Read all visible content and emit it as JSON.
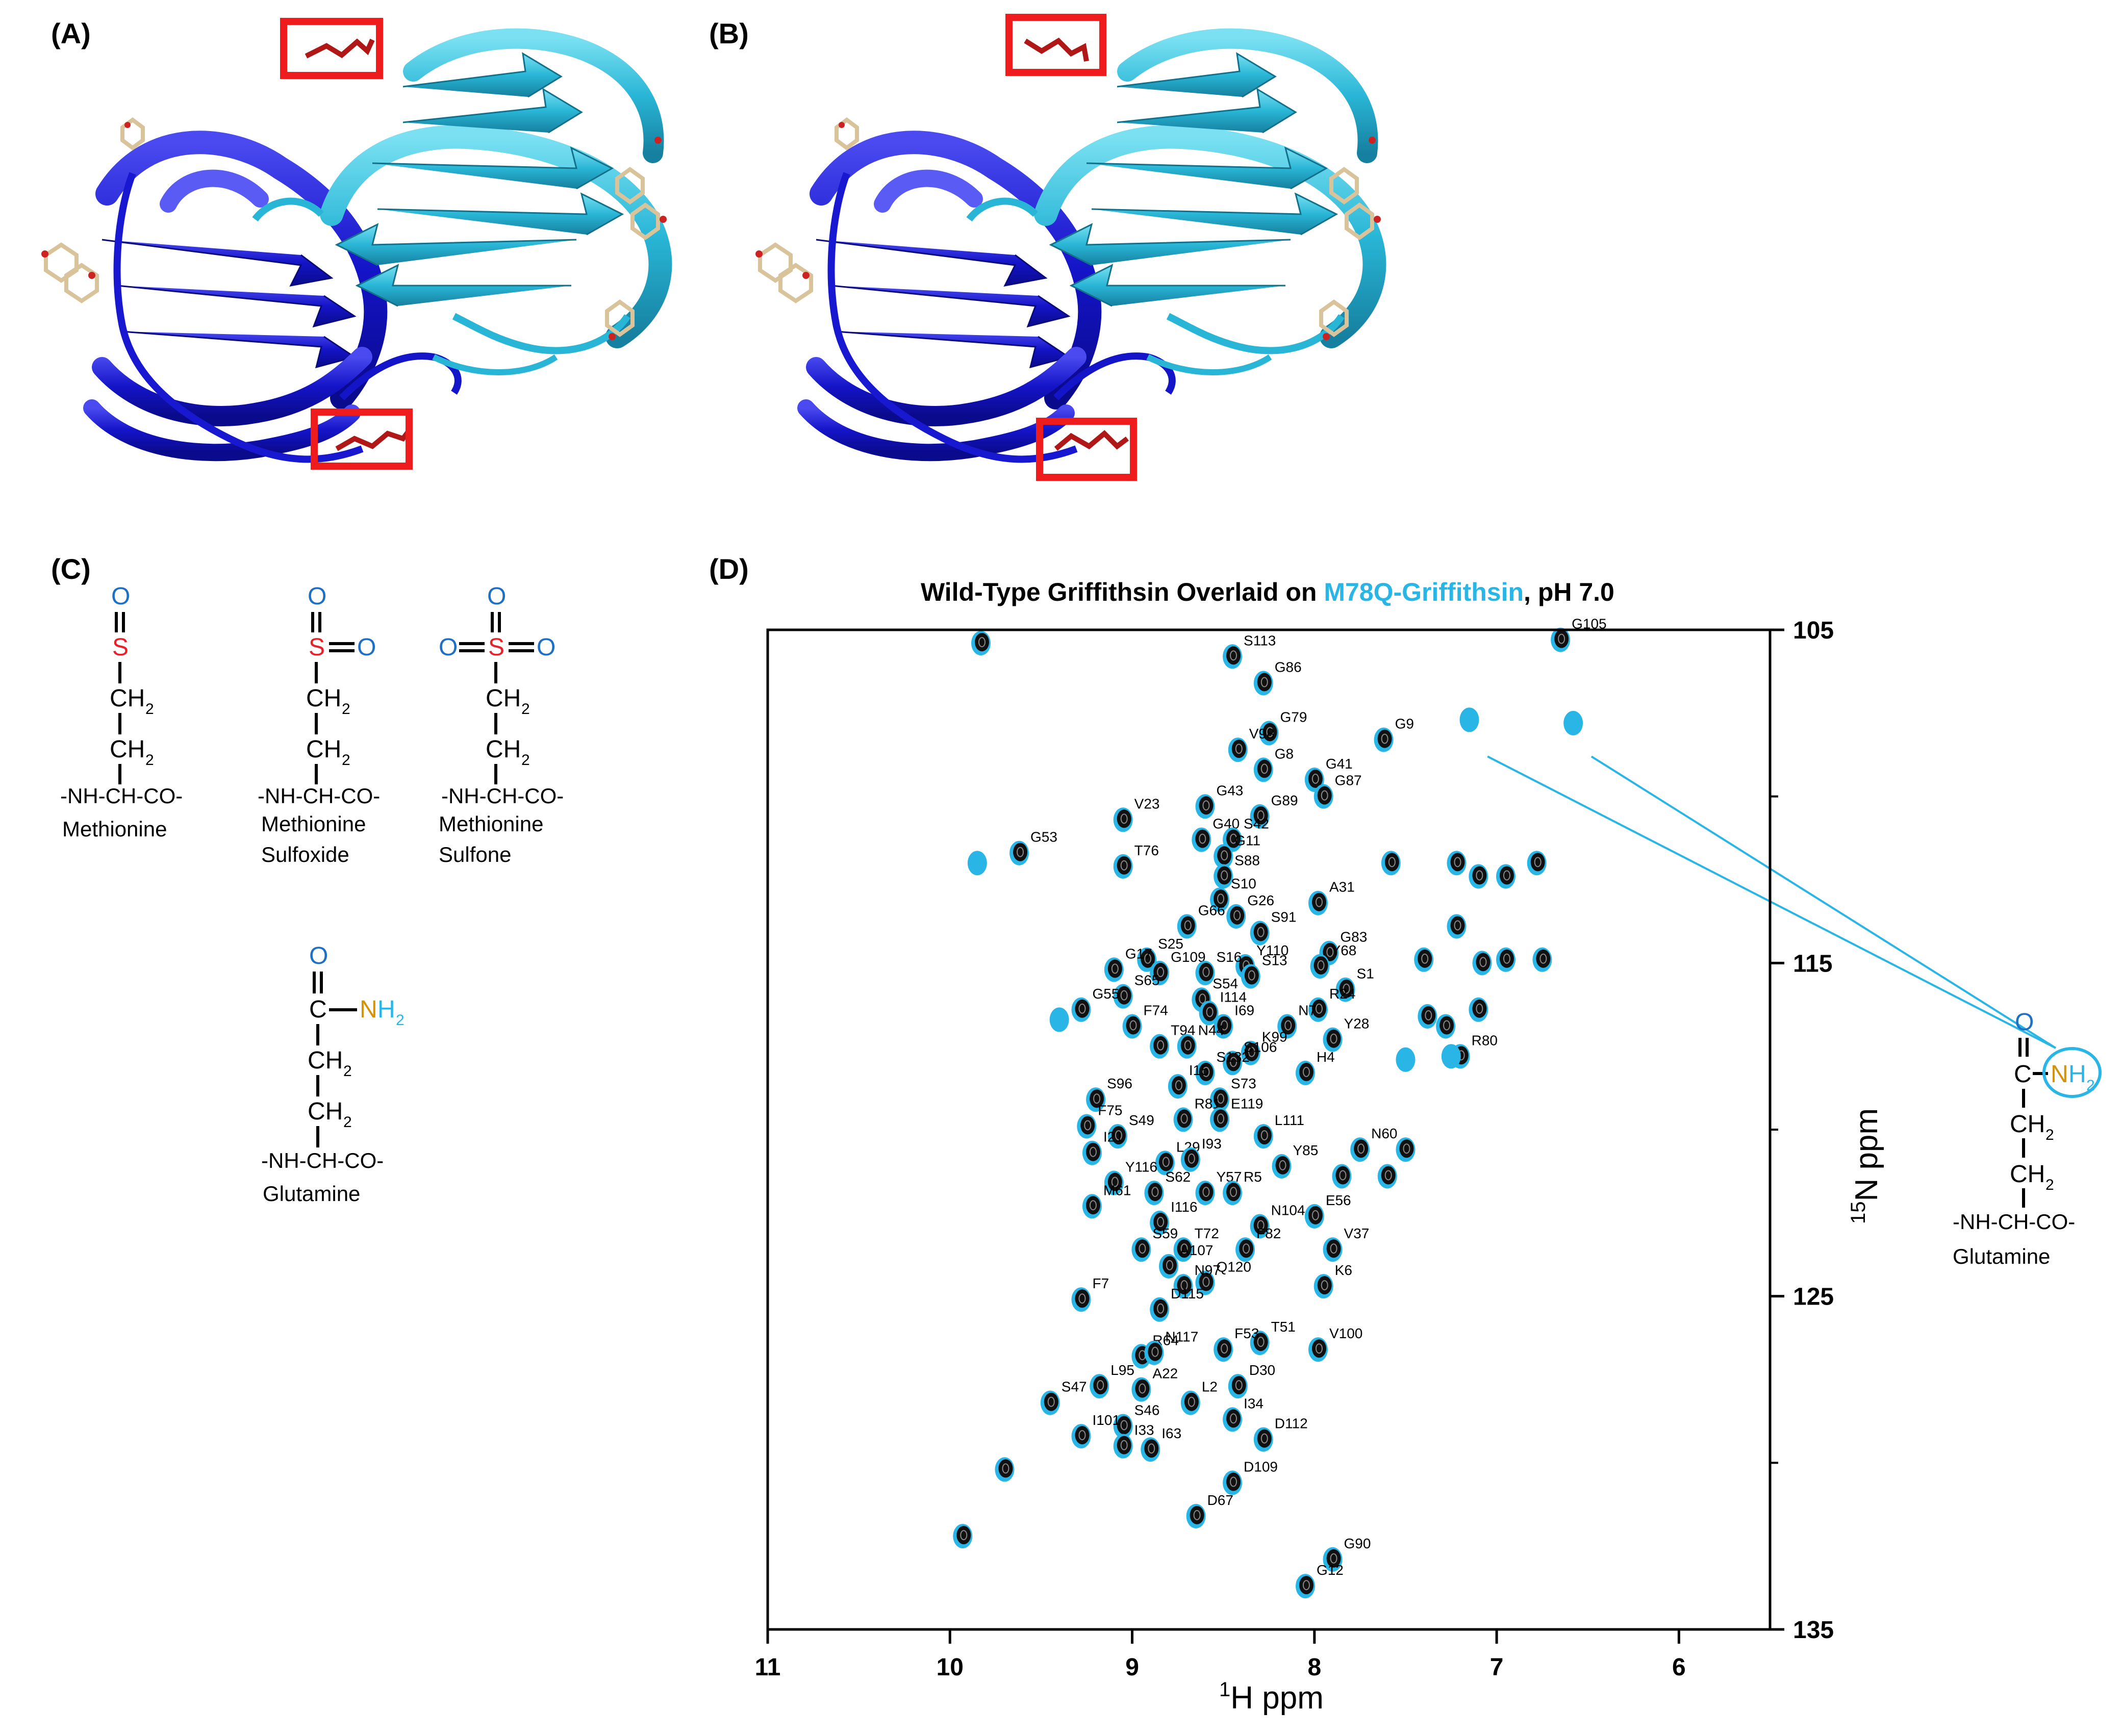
{
  "panels": {
    "a_label": "(A)",
    "b_label": "(B)",
    "c_label": "(C)",
    "d_label": "(D)"
  },
  "structures": {
    "methionine": {
      "name": "Methionine",
      "backbone": "-NH-CH-CO-"
    },
    "sulfoxide": {
      "name1": "Methionine",
      "name2": "Sulfoxide",
      "backbone": "-NH-CH-CO-"
    },
    "sulfone": {
      "name1": "Methionine",
      "name2": "Sulfone",
      "backbone": "-NH-CH-CO-"
    },
    "glutamine": {
      "name": "Glutamine",
      "backbone": "-NH-CH-CO-"
    },
    "glutamine_inset": {
      "name": "Glutamine",
      "backbone": "-NH-CH-CO-"
    },
    "atoms": {
      "O": "O",
      "S": "S",
      "C": "C",
      "N": "N",
      "CH": "CH",
      "H": "H",
      "sub2": "2"
    }
  },
  "colors": {
    "oxygen": "#1f6fc4",
    "sulfur": "#e8202a",
    "nitrogen": "#d4920a",
    "backbone": "#1a2f6e",
    "wildtype": "#111111",
    "mutant": "#29b6e6",
    "highlight_box": "#ee1c1c",
    "chain_dark": "#1414c8",
    "chain_light": "#29b6d6"
  },
  "chart_data": {
    "type": "scatter",
    "title_part1": "Wild-Type Griffithsin Overlaid on ",
    "title_part2": "M78Q-Griffithsin",
    "title_part3": ", pH 7.0",
    "xlabel": "H ppm",
    "xlabel_sup": "1",
    "ylabel": "N ppm",
    "ylabel_sup": "15",
    "xlim": [
      11,
      5.5
    ],
    "ylim": [
      105,
      135
    ],
    "xticks": [
      11,
      10,
      9,
      8,
      7,
      6
    ],
    "yticks": [
      105,
      115,
      125,
      135
    ],
    "series": [
      {
        "name": "Wild-Type Griffithsin",
        "color": "#111111"
      },
      {
        "name": "M78Q-Griffithsin",
        "color": "#29b6e6"
      }
    ],
    "peaks": [
      {
        "label": "S113",
        "x": 8.45,
        "y": 105.8
      },
      {
        "label": "G105",
        "x": 6.65,
        "y": 105.3
      },
      {
        "label": "G86",
        "x": 8.28,
        "y": 106.6
      },
      {
        "label": "G79",
        "x": 8.25,
        "y": 108.1
      },
      {
        "label": "G9",
        "x": 7.62,
        "y": 108.3
      },
      {
        "label": "V98",
        "x": 8.42,
        "y": 108.6
      },
      {
        "label": "G8",
        "x": 8.28,
        "y": 109.2
      },
      {
        "label": "G41",
        "x": 8.0,
        "y": 109.5
      },
      {
        "label": "G87",
        "x": 7.95,
        "y": 110.0
      },
      {
        "label": "G43",
        "x": 8.6,
        "y": 110.3
      },
      {
        "label": "G89",
        "x": 8.3,
        "y": 110.6
      },
      {
        "label": "V23",
        "x": 9.05,
        "y": 110.7
      },
      {
        "label": "G40",
        "x": 8.62,
        "y": 111.3
      },
      {
        "label": "S42",
        "x": 8.45,
        "y": 111.3
      },
      {
        "label": "G53",
        "x": 9.62,
        "y": 111.7
      },
      {
        "label": "G11",
        "x": 8.5,
        "y": 111.8
      },
      {
        "label": "T76",
        "x": 9.05,
        "y": 112.1
      },
      {
        "label": "S88",
        "x": 8.5,
        "y": 112.4
      },
      {
        "label": "S10",
        "x": 8.52,
        "y": 113.1
      },
      {
        "label": "A31",
        "x": 7.98,
        "y": 113.2
      },
      {
        "label": "G26",
        "x": 8.43,
        "y": 113.6
      },
      {
        "label": "G66",
        "x": 8.7,
        "y": 113.9
      },
      {
        "label": "S91",
        "x": 8.3,
        "y": 114.1
      },
      {
        "label": "G83",
        "x": 7.92,
        "y": 114.7
      },
      {
        "label": "S25",
        "x": 8.92,
        "y": 114.9
      },
      {
        "label": "Y110",
        "x": 8.38,
        "y": 115.1
      },
      {
        "label": "Y68",
        "x": 7.97,
        "y": 115.1
      },
      {
        "label": "G17",
        "x": 9.1,
        "y": 115.2
      },
      {
        "label": "G109",
        "x": 8.85,
        "y": 115.3
      },
      {
        "label": "S16",
        "x": 8.6,
        "y": 115.3
      },
      {
        "label": "S13",
        "x": 8.35,
        "y": 115.4
      },
      {
        "label": "S1",
        "x": 7.83,
        "y": 115.8
      },
      {
        "label": "S65",
        "x": 9.05,
        "y": 116.0
      },
      {
        "label": "S54",
        "x": 8.62,
        "y": 116.1
      },
      {
        "label": "G55",
        "x": 9.28,
        "y": 116.4
      },
      {
        "label": "I114",
        "x": 8.58,
        "y": 116.5
      },
      {
        "label": "R24",
        "x": 7.98,
        "y": 116.4
      },
      {
        "label": "F74",
        "x": 9.0,
        "y": 116.9
      },
      {
        "label": "I69",
        "x": 8.5,
        "y": 116.9
      },
      {
        "label": "N7",
        "x": 8.15,
        "y": 116.9
      },
      {
        "label": "Y28",
        "x": 7.9,
        "y": 117.3
      },
      {
        "label": "T94",
        "x": 8.85,
        "y": 117.5
      },
      {
        "label": "N44",
        "x": 8.7,
        "y": 117.5
      },
      {
        "label": "K99",
        "x": 8.35,
        "y": 117.7
      },
      {
        "label": "R80",
        "x": 7.2,
        "y": 117.8
      },
      {
        "label": "S106",
        "x": 8.45,
        "y": 118.0
      },
      {
        "label": "S132",
        "x": 8.6,
        "y": 118.3
      },
      {
        "label": "H4",
        "x": 8.05,
        "y": 118.3
      },
      {
        "label": "I15",
        "x": 8.75,
        "y": 118.7
      },
      {
        "label": "S73",
        "x": 8.52,
        "y": 119.1
      },
      {
        "label": "S96",
        "x": 9.2,
        "y": 119.1
      },
      {
        "label": "R81",
        "x": 8.72,
        "y": 119.7
      },
      {
        "label": "E119",
        "x": 8.52,
        "y": 119.7
      },
      {
        "label": "F75",
        "x": 9.25,
        "y": 119.9
      },
      {
        "label": "S49",
        "x": 9.08,
        "y": 120.2
      },
      {
        "label": "L111",
        "x": 8.28,
        "y": 120.2
      },
      {
        "label": "N60",
        "x": 7.75,
        "y": 120.6
      },
      {
        "label": "I21",
        "x": 9.22,
        "y": 120.7
      },
      {
        "label": "L29",
        "x": 8.82,
        "y": 121.0
      },
      {
        "label": "I93",
        "x": 8.68,
        "y": 120.9
      },
      {
        "label": "Y85",
        "x": 8.18,
        "y": 121.1
      },
      {
        "label": "Y116",
        "x": 9.1,
        "y": 121.6
      },
      {
        "label": "S62",
        "x": 8.88,
        "y": 121.9
      },
      {
        "label": "Y57",
        "x": 8.6,
        "y": 121.9
      },
      {
        "label": "R5",
        "x": 8.45,
        "y": 121.9
      },
      {
        "label": "M61",
        "x": 9.22,
        "y": 122.3
      },
      {
        "label": "E56",
        "x": 8.0,
        "y": 122.6
      },
      {
        "label": "N104",
        "x": 8.3,
        "y": 122.9
      },
      {
        "label": "I116",
        "x": 8.85,
        "y": 122.8
      },
      {
        "label": "V37",
        "x": 7.9,
        "y": 123.6
      },
      {
        "label": "S59",
        "x": 8.95,
        "y": 123.6
      },
      {
        "label": "T72",
        "x": 8.72,
        "y": 123.6
      },
      {
        "label": "F82",
        "x": 8.38,
        "y": 123.6
      },
      {
        "label": "A107",
        "x": 8.8,
        "y": 124.1
      },
      {
        "label": "Q120",
        "x": 8.6,
        "y": 124.6
      },
      {
        "label": "N97",
        "x": 8.72,
        "y": 124.7
      },
      {
        "label": "K6",
        "x": 7.95,
        "y": 124.7
      },
      {
        "label": "F7",
        "x": 9.28,
        "y": 125.1
      },
      {
        "label": "D115",
        "x": 8.85,
        "y": 125.4
      },
      {
        "label": "T51",
        "x": 8.3,
        "y": 126.4
      },
      {
        "label": "F53",
        "x": 8.5,
        "y": 126.6
      },
      {
        "label": "V100",
        "x": 7.98,
        "y": 126.6
      },
      {
        "label": "R64",
        "x": 8.95,
        "y": 126.8
      },
      {
        "label": "N117",
        "x": 8.88,
        "y": 126.7
      },
      {
        "label": "L95",
        "x": 9.18,
        "y": 127.7
      },
      {
        "label": "A22",
        "x": 8.95,
        "y": 127.8
      },
      {
        "label": "D30",
        "x": 8.42,
        "y": 127.7
      },
      {
        "label": "S47",
        "x": 9.45,
        "y": 128.2
      },
      {
        "label": "L2",
        "x": 8.68,
        "y": 128.2
      },
      {
        "label": "S46",
        "x": 9.05,
        "y": 128.9
      },
      {
        "label": "I34",
        "x": 8.45,
        "y": 128.7
      },
      {
        "label": "D112",
        "x": 8.28,
        "y": 129.3
      },
      {
        "label": "I101",
        "x": 9.28,
        "y": 129.2
      },
      {
        "label": "I33",
        "x": 9.05,
        "y": 129.5
      },
      {
        "label": "I63",
        "x": 8.9,
        "y": 129.6
      },
      {
        "label": "D109",
        "x": 8.45,
        "y": 130.6
      },
      {
        "label": "D67",
        "x": 8.65,
        "y": 131.6
      },
      {
        "label": "G90",
        "x": 7.9,
        "y": 132.9
      },
      {
        "label": "G12",
        "x": 8.05,
        "y": 133.7
      }
    ],
    "unlabeled_peaks": [
      {
        "x": 9.83,
        "y": 105.4
      },
      {
        "x": 9.7,
        "y": 130.2
      },
      {
        "x": 9.93,
        "y": 132.2
      },
      {
        "x": 7.58,
        "y": 112.0
      },
      {
        "x": 7.22,
        "y": 112.0
      },
      {
        "x": 7.1,
        "y": 112.4
      },
      {
        "x": 6.95,
        "y": 112.4
      },
      {
        "x": 6.78,
        "y": 112.0
      },
      {
        "x": 7.22,
        "y": 113.9
      },
      {
        "x": 7.4,
        "y": 114.9
      },
      {
        "x": 7.08,
        "y": 115.0
      },
      {
        "x": 6.95,
        "y": 114.9
      },
      {
        "x": 6.75,
        "y": 114.9
      },
      {
        "x": 7.1,
        "y": 116.4
      },
      {
        "x": 7.28,
        "y": 116.9
      },
      {
        "x": 7.85,
        "y": 121.4
      },
      {
        "x": 7.6,
        "y": 121.4
      },
      {
        "x": 7.5,
        "y": 120.6
      },
      {
        "x": 7.38,
        "y": 116.6
      }
    ],
    "mutant_only_peaks": [
      {
        "x": 7.15,
        "y": 107.7
      },
      {
        "x": 6.58,
        "y": 107.8
      },
      {
        "x": 7.5,
        "y": 117.9
      },
      {
        "x": 7.25,
        "y": 117.8
      },
      {
        "x": 9.85,
        "y": 112.0
      },
      {
        "x": 9.4,
        "y": 116.7
      }
    ],
    "annotation": {
      "label": "Glutamine side-chain NH2",
      "from": [
        [
          7.05,
          108.8
        ],
        [
          6.48,
          108.8
        ]
      ]
    }
  }
}
